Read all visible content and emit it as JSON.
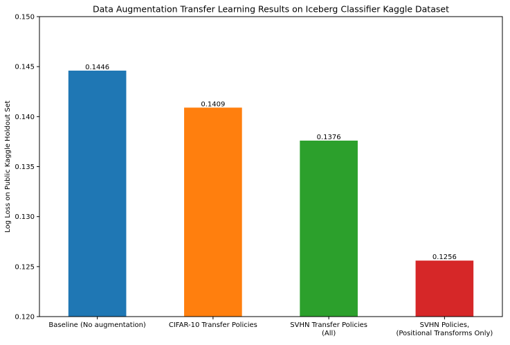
{
  "chart_data": {
    "type": "bar",
    "title": "Data Augmentation Transfer Learning Results on Iceberg Classifier Kaggle Dataset",
    "xlabel": "",
    "ylabel": "Log Loss on Public Kaggle Holdout Set",
    "ylim": [
      0.12,
      0.15
    ],
    "yticks": [
      "0.120",
      "0.125",
      "0.130",
      "0.135",
      "0.140",
      "0.145",
      "0.150"
    ],
    "grid": false,
    "categories": [
      [
        "Baseline (No augmentation)"
      ],
      [
        "CIFAR-10 Transfer Policies"
      ],
      [
        "SVHN Transfer Policies",
        "(All)"
      ],
      [
        "SVHN Policies,",
        "(Positional Transforms Only)"
      ]
    ],
    "values": [
      0.1446,
      0.1409,
      0.1376,
      0.1256
    ],
    "data_labels": [
      "0.1446",
      "0.1409",
      "0.1376",
      "0.1256"
    ],
    "colors": [
      "#1f77b4",
      "#ff7f0e",
      "#2ca02c",
      "#d62728"
    ]
  }
}
